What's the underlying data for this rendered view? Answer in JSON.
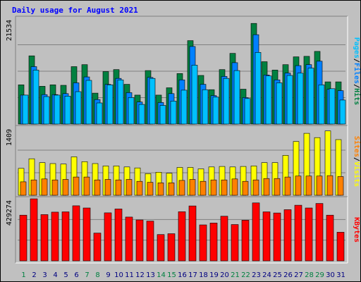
{
  "title": "Daily usage for August 2021",
  "colors": {
    "background": "#c0c0c0",
    "plot_bg": "#c0c0c0",
    "grid": "#808080",
    "title": "#0000ff",
    "hits": "#008040",
    "files": "#0080ff",
    "pages": "#00c0ff",
    "visits": "#ffff00",
    "sites": "#ff8000",
    "kbytes": "#ff0000",
    "weekday_label": "#000080",
    "weekend_label": "#008040"
  },
  "chart_data": [
    {
      "type": "bar",
      "panel": "hits-files-pages",
      "max_label": "21534",
      "ylim": [
        0,
        21534
      ],
      "categories": [
        "1",
        "2",
        "3",
        "4",
        "5",
        "6",
        "7",
        "8",
        "9",
        "10",
        "11",
        "12",
        "13",
        "14",
        "15",
        "16",
        "17",
        "18",
        "19",
        "20",
        "21",
        "22",
        "23",
        "24",
        "25",
        "26",
        "27",
        "28",
        "29",
        "30",
        "31"
      ],
      "legend": [
        "Pages",
        "/",
        "Files",
        "/",
        "Hits"
      ],
      "series": [
        {
          "name": "Hits",
          "values": [
            8000,
            13900,
            7700,
            8000,
            7900,
            11700,
            12100,
            6300,
            10700,
            11100,
            8100,
            5900,
            10900,
            5900,
            7400,
            10300,
            17000,
            9900,
            7000,
            11100,
            14400,
            7100,
            20500,
            12700,
            11000,
            12100,
            13700,
            13800,
            14800,
            8600,
            8600
          ]
        },
        {
          "name": "Files",
          "values": [
            5900,
            11700,
            6000,
            6000,
            6200,
            8400,
            9600,
            5000,
            8100,
            9300,
            6400,
            4500,
            9500,
            4400,
            6200,
            9000,
            15800,
            8100,
            5800,
            9700,
            12500,
            5400,
            18200,
            10000,
            9000,
            10400,
            11900,
            12100,
            12800,
            7100,
            6800
          ]
        },
        {
          "name": "Pages",
          "values": [
            5900,
            11000,
            5600,
            5900,
            5700,
            6600,
            8900,
            4300,
            8000,
            9000,
            5400,
            4000,
            9300,
            3800,
            4700,
            6900,
            12000,
            7000,
            5500,
            9300,
            10900,
            5200,
            14600,
            9800,
            8400,
            9900,
            10400,
            11400,
            8000,
            7200,
            4900
          ]
        }
      ]
    },
    {
      "type": "bar",
      "panel": "visits-sites",
      "max_label": "1409",
      "ylim": [
        0,
        1409
      ],
      "categories": [
        "1",
        "2",
        "3",
        "4",
        "5",
        "6",
        "7",
        "8",
        "9",
        "10",
        "11",
        "12",
        "13",
        "14",
        "15",
        "16",
        "17",
        "18",
        "19",
        "20",
        "21",
        "22",
        "23",
        "24",
        "25",
        "26",
        "27",
        "28",
        "29",
        "30",
        "31"
      ],
      "legend": [
        "Sites",
        "/",
        "Visits"
      ],
      "series": [
        {
          "name": "Visits",
          "values": [
            560,
            760,
            680,
            660,
            650,
            800,
            700,
            660,
            610,
            610,
            590,
            570,
            450,
            480,
            460,
            580,
            580,
            550,
            590,
            600,
            590,
            600,
            610,
            680,
            680,
            830,
            1120,
            1290,
            1200,
            1340,
            1160
          ]
        },
        {
          "name": "Sites",
          "values": [
            280,
            320,
            340,
            320,
            330,
            380,
            380,
            320,
            330,
            320,
            330,
            290,
            270,
            260,
            260,
            310,
            330,
            290,
            320,
            320,
            340,
            290,
            320,
            350,
            350,
            380,
            400,
            400,
            400,
            410,
            390
          ]
        }
      ]
    },
    {
      "type": "bar",
      "panel": "kbytes",
      "max_label": "429274",
      "ylim": [
        0,
        429274
      ],
      "categories": [
        "1",
        "2",
        "3",
        "4",
        "5",
        "6",
        "7",
        "8",
        "9",
        "10",
        "11",
        "12",
        "13",
        "14",
        "15",
        "16",
        "17",
        "18",
        "19",
        "20",
        "21",
        "22",
        "23",
        "24",
        "25",
        "26",
        "27",
        "28",
        "29",
        "30",
        "31"
      ],
      "legend": [
        "KBytes"
      ],
      "series": [
        {
          "name": "KBytes",
          "values": [
            316000,
            429274,
            320000,
            337000,
            339000,
            381000,
            366000,
            192000,
            332000,
            359000,
            303000,
            283000,
            275000,
            182000,
            188000,
            340000,
            380000,
            249000,
            262000,
            309000,
            251000,
            281000,
            401000,
            339000,
            331000,
            354000,
            385000,
            366000,
            397000,
            316000,
            198000
          ]
        }
      ]
    }
  ]
}
